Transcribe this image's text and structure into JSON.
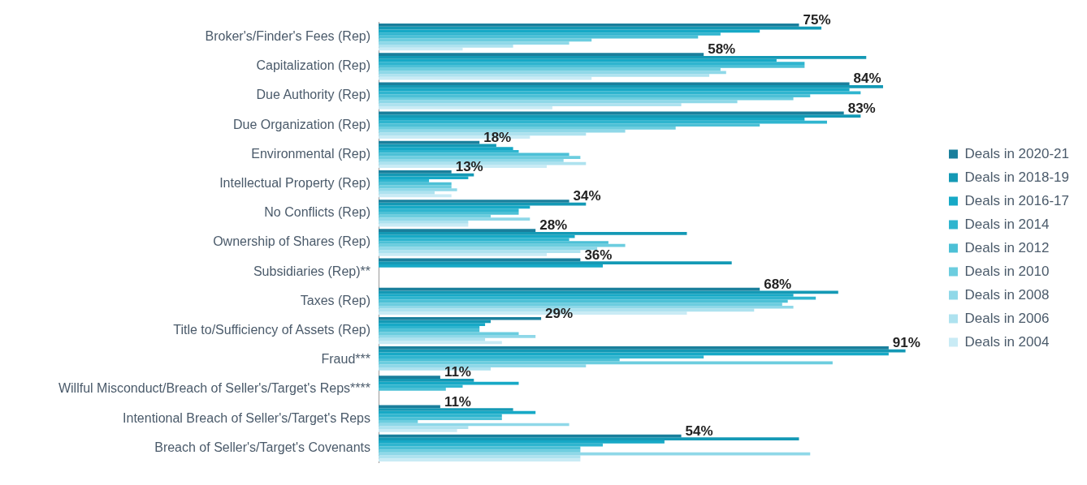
{
  "chart_data": {
    "type": "bar",
    "orientation": "horizontal",
    "grid": false,
    "legend": "right",
    "tick_labels": "y",
    "categories": [
      "Broker's/Finder's Fees (Rep)",
      "Capitalization (Rep)",
      "Due Authority (Rep)",
      "Due Organization (Rep)",
      "Environmental (Rep)",
      "Intellectual Property (Rep)",
      "No Conflicts (Rep)",
      "Ownership of Shares (Rep)",
      "Subsidiaries (Rep)**",
      "Taxes (Rep)",
      "Title to/Sufficiency of Assets (Rep)",
      "Fraud***",
      "Willful Misconduct/Breach of Seller's/Target's Reps****",
      "Intentional Breach of Seller's/Target's Reps",
      "Breach of Seller's/Target's Covenants"
    ],
    "series": [
      {
        "name": "Deals in 2020-21",
        "color": "#1a7f9c",
        "values": [
          75,
          58,
          84,
          83,
          18,
          13,
          34,
          28,
          36,
          68,
          29,
          91,
          11,
          11,
          54
        ],
        "value_labels": [
          "75%",
          "58%",
          "84%",
          "83%",
          "18%",
          "13%",
          "34%",
          "28%",
          "36%",
          "68%",
          "29%",
          "91%",
          "11%",
          "11%",
          "54%"
        ]
      },
      {
        "name": "Deals in 2018-19",
        "color": "#1499b5",
        "values": [
          79,
          87,
          90,
          86,
          21,
          17,
          37,
          55,
          63,
          82,
          20,
          94,
          17,
          24,
          75
        ]
      },
      {
        "name": "Deals in 2016-17",
        "color": "#17a9c6",
        "values": [
          68,
          71,
          84,
          76,
          24,
          16,
          27,
          35,
          40,
          74,
          19,
          91,
          25,
          28,
          51
        ]
      },
      {
        "name": "Deals in 2014",
        "color": "#2fb5cf",
        "values": [
          61,
          76,
          86,
          80,
          25,
          9,
          25,
          34,
          null,
          78,
          18,
          58,
          15,
          22,
          40
        ]
      },
      {
        "name": "Deals in 2012",
        "color": "#4cc0d6",
        "values": [
          57,
          76,
          77,
          68,
          34,
          13,
          25,
          41,
          null,
          73,
          18,
          43,
          12,
          22,
          36
        ]
      },
      {
        "name": "Deals in 2010",
        "color": "#6ccddf",
        "values": [
          38,
          61,
          74,
          53,
          36,
          13,
          20,
          44,
          null,
          72,
          25,
          81,
          null,
          7,
          36
        ]
      },
      {
        "name": "Deals in 2008",
        "color": "#8fd8e8",
        "values": [
          34,
          62,
          64,
          44,
          33,
          14,
          27,
          39,
          null,
          74,
          28,
          37,
          null,
          34,
          77
        ]
      },
      {
        "name": "Deals in 2006",
        "color": "#aee2ef",
        "values": [
          24,
          59,
          54,
          37,
          37,
          10,
          16,
          36,
          null,
          67,
          19,
          20,
          null,
          16,
          36
        ]
      },
      {
        "name": "Deals in 2004",
        "color": "#c9ebf5",
        "values": [
          15,
          38,
          31,
          27,
          30,
          13,
          16,
          30,
          null,
          55,
          22,
          null,
          null,
          14,
          36
        ]
      }
    ]
  }
}
